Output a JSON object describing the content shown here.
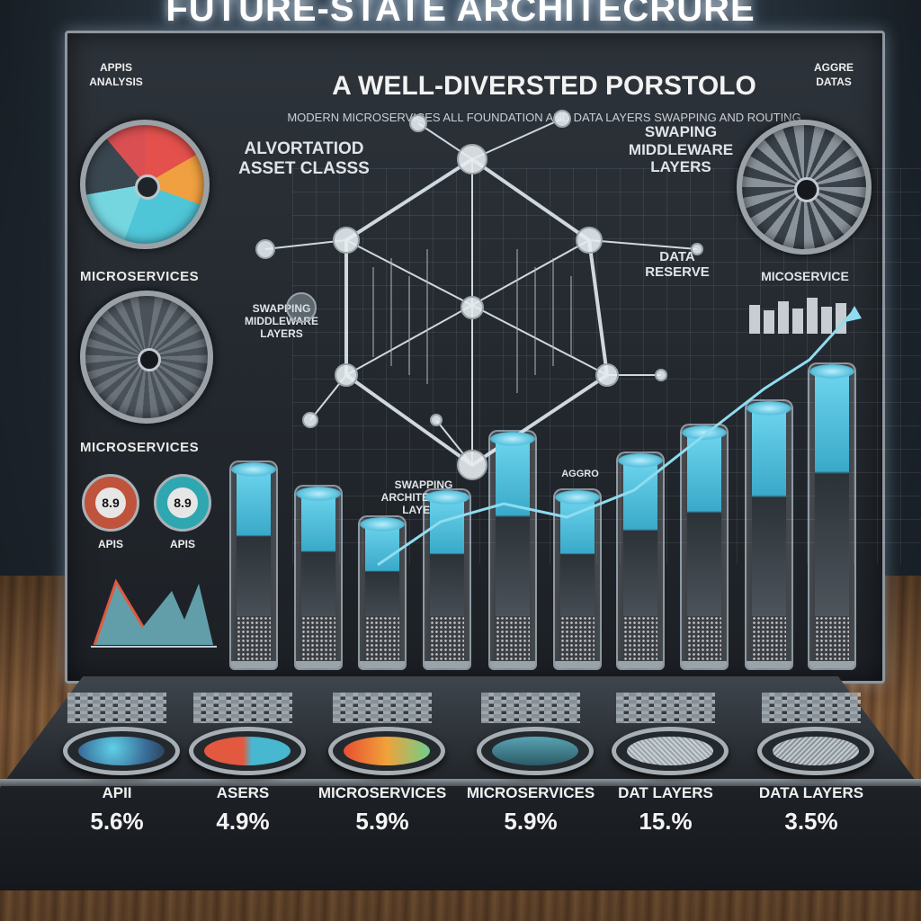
{
  "title": "FUTURE-STATE ARCHITECRURE",
  "subtitle": "A WELL-DIVERSTED PORSTOLO",
  "tagline": "MODERN MICROSERVICES ALL FOUNDATION AND DATA LAYERS SWAPPING AND ROUTING",
  "corner_left": "APPIS ANALYSIS",
  "corner_right": "AGGRE DATAS",
  "labels": {
    "asset_class": "ALVORTATIOD ASSET CLASSS",
    "swapping_layers": "SWAPING MIDDLEWARE LAYERS",
    "data_reserve": "DATA RESERVE",
    "microservice_right": "MICOSERVICE",
    "microservices_1": "MICROSERVICES",
    "microservices_2": "MICROSERVICES",
    "swapping_small": "SWAPPING MIDDLEWARE LAYERS",
    "swapping_mid": "SWAPPING ARCHITECTURE LAYERS",
    "aggro": "AGGRO"
  },
  "donuts": [
    {
      "value": "8.9",
      "label": "APIS",
      "color": "#c0533c"
    },
    {
      "value": "8.9",
      "label": "APIS",
      "color": "#2fa7b0"
    }
  ],
  "console_items": [
    {
      "label": "APII",
      "value": "5.6%",
      "gem": "radial-gradient(circle at 40% 40%, #5fd0e8, #3a6f9a 60%, #2a3f55)"
    },
    {
      "label": "ASERS",
      "value": "4.9%",
      "gem": "linear-gradient(90deg, #e2593f 45%, #48b7d0 55%)"
    },
    {
      "label": "MICROSERVICES",
      "value": "5.9%",
      "gem": "linear-gradient(90deg, #e84f32, #f0a23a 50%, #6fcf8a)"
    },
    {
      "label": "MICROSERVICES",
      "value": "5.9%",
      "gem": "linear-gradient(180deg, #5aa3b4, #2b5a66)"
    },
    {
      "label": "DAT LAYERS",
      "value": "15.%",
      "gem": "repeating-linear-gradient(45deg, #9aa4ab 0 2px, #c9d0d5 2px 4px)"
    },
    {
      "label": "DATA LAYERS",
      "value": "3.5%",
      "gem": "repeating-linear-gradient(135deg, #8a949b 0 2px, #c4cbd0 2px 4px)"
    }
  ],
  "bars": [
    0.42,
    0.34,
    0.24,
    0.33,
    0.52,
    0.33,
    0.45,
    0.54,
    0.62,
    0.74
  ],
  "colors": {
    "accent": "#5bc7e3",
    "warm": "#e2593f"
  }
}
